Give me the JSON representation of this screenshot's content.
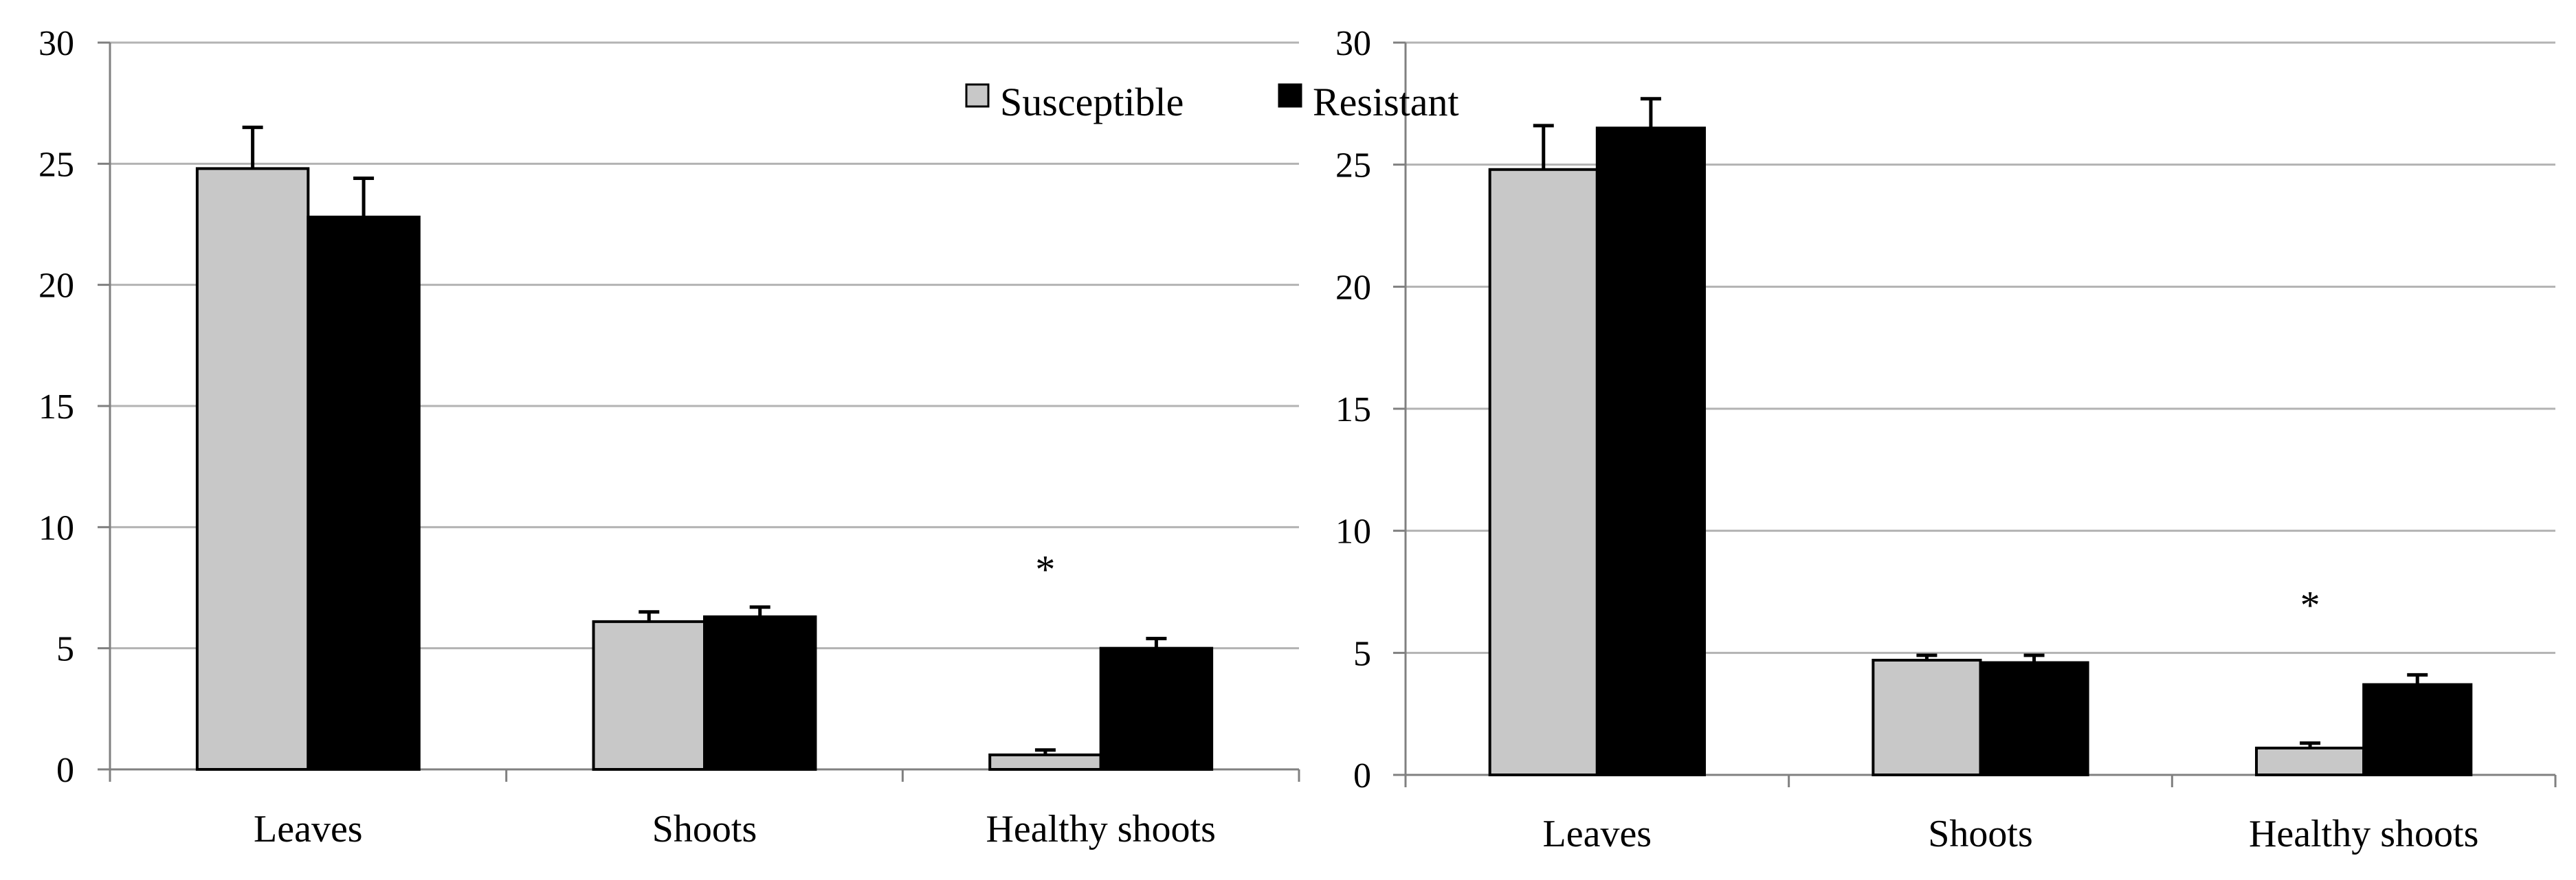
{
  "colors": {
    "susceptible": "#c8c8c8",
    "resistant": "#000000",
    "gridline": "#b3b3b3",
    "axis": "#808080",
    "bar_stroke": "#000000"
  },
  "legend": {
    "susceptible": "Susceptible",
    "resistant": "Resistant"
  },
  "chart_data": [
    {
      "type": "bar",
      "title": "",
      "xlabel": "",
      "ylabel": "",
      "categories": [
        "Leaves",
        "Shoots",
        "Healthy shoots"
      ],
      "series": [
        {
          "name": "Susceptible",
          "values": [
            24.8,
            6.1,
            0.6
          ],
          "errors": [
            1.7,
            0.4,
            0.2
          ]
        },
        {
          "name": "Resistant",
          "values": [
            22.8,
            6.3,
            5.0
          ],
          "errors": [
            1.6,
            0.4,
            0.4
          ]
        }
      ],
      "ylim": [
        0,
        30
      ],
      "yticks": [
        "0",
        "5",
        "10",
        "15",
        "20",
        "25",
        "30"
      ],
      "grid": true,
      "legend": "top-right",
      "annotations": [
        {
          "category": "Healthy shoots",
          "text": "*"
        }
      ]
    },
    {
      "type": "bar",
      "title": "",
      "xlabel": "",
      "ylabel": "",
      "categories": [
        "Leaves",
        "Shoots",
        "Healthy shoots"
      ],
      "series": [
        {
          "name": "Susceptible",
          "values": [
            24.8,
            4.7,
            1.1
          ],
          "errors": [
            1.8,
            0.2,
            0.2
          ]
        },
        {
          "name": "Resistant",
          "values": [
            26.5,
            4.6,
            3.7
          ],
          "errors": [
            1.2,
            0.3,
            0.4
          ]
        }
      ],
      "ylim": [
        0,
        30
      ],
      "yticks": [
        "0",
        "5",
        "10",
        "15",
        "20",
        "25",
        "30"
      ],
      "grid": true,
      "legend": "",
      "annotations": [
        {
          "category": "Healthy shoots",
          "text": "*"
        }
      ]
    }
  ]
}
